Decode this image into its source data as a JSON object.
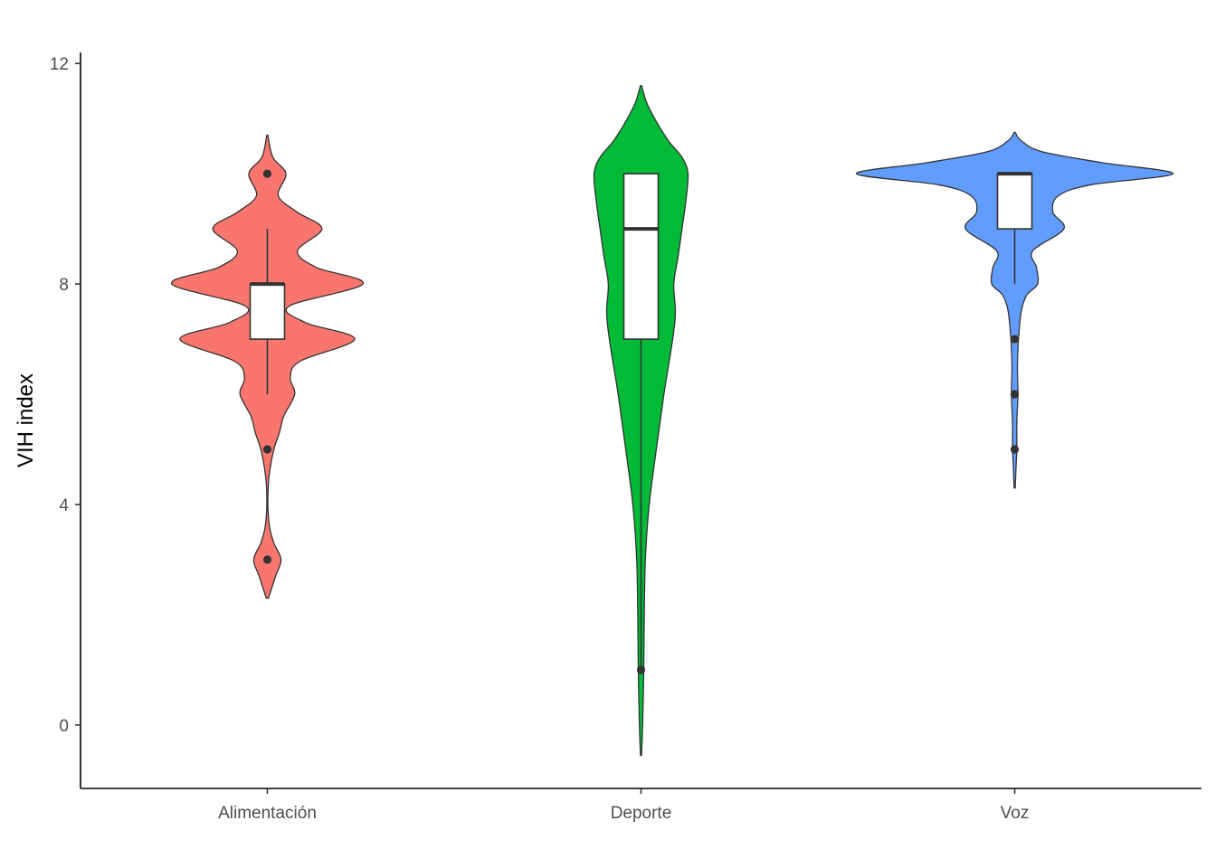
{
  "chart_data": {
    "type": "violin",
    "title": "",
    "xlabel": "",
    "ylabel": "VIH index",
    "ylim": [
      -1.15,
      12.2
    ],
    "yticks": [
      0,
      4,
      8,
      12
    ],
    "grid": false,
    "legend": "none",
    "categories": [
      "Alimentación",
      "Deporte",
      "Voz"
    ],
    "series": [
      {
        "category": "Alimentación",
        "color": "#F8766D",
        "box": {
          "min": 6,
          "q1": 7,
          "median": 8,
          "q3": 8,
          "max": 9
        },
        "outliers": [
          10,
          5,
          3
        ],
        "density": [
          [
            2.3,
            0.2
          ],
          [
            2.7,
            1.5
          ],
          [
            3.0,
            2.5
          ],
          [
            3.3,
            1.2
          ],
          [
            3.6,
            0.4
          ],
          [
            4.0,
            0.1
          ],
          [
            4.5,
            0.3
          ],
          [
            5.0,
            1.2
          ],
          [
            5.3,
            2.2
          ],
          [
            5.6,
            3.0
          ],
          [
            6.0,
            5.0
          ],
          [
            6.3,
            4.2
          ],
          [
            6.6,
            6.0
          ],
          [
            7.0,
            16.0
          ],
          [
            7.3,
            7.0
          ],
          [
            7.6,
            4.0
          ],
          [
            8.0,
            17.5
          ],
          [
            8.3,
            9.0
          ],
          [
            8.6,
            5.5
          ],
          [
            9.0,
            10.0
          ],
          [
            9.3,
            5.5
          ],
          [
            9.6,
            2.0
          ],
          [
            10.0,
            3.4
          ],
          [
            10.3,
            1.0
          ],
          [
            10.7,
            0.1
          ]
        ]
      },
      {
        "category": "Deporte",
        "color": "#00BA38",
        "box": {
          "min": 1,
          "q1": 7,
          "median": 9,
          "q3": 10,
          "max": 10
        },
        "outliers": [
          1
        ],
        "density": [
          [
            -0.55,
            0.1
          ],
          [
            0,
            0.3
          ],
          [
            1.0,
            0.5
          ],
          [
            2.0,
            0.6
          ],
          [
            3.0,
            0.8
          ],
          [
            4.0,
            1.5
          ],
          [
            5.0,
            2.8
          ],
          [
            6.0,
            4.2
          ],
          [
            7.0,
            5.8
          ],
          [
            7.5,
            6.3
          ],
          [
            8.0,
            6.0
          ],
          [
            8.5,
            6.8
          ],
          [
            9.0,
            7.5
          ],
          [
            9.5,
            8.2
          ],
          [
            10.0,
            8.6
          ],
          [
            10.3,
            7.5
          ],
          [
            10.6,
            5.0
          ],
          [
            11.0,
            2.5
          ],
          [
            11.3,
            1.0
          ],
          [
            11.6,
            0.1
          ]
        ]
      },
      {
        "category": "Voz",
        "color": "#619CFF",
        "box": {
          "min": 8,
          "q1": 9,
          "median": 10,
          "q3": 10,
          "max": 10
        },
        "outliers": [
          7,
          6,
          5
        ],
        "density": [
          [
            4.3,
            0.1
          ],
          [
            4.8,
            0.3
          ],
          [
            5.0,
            0.4
          ],
          [
            5.5,
            0.4
          ],
          [
            6.0,
            0.6
          ],
          [
            6.5,
            0.5
          ],
          [
            7.0,
            0.7
          ],
          [
            7.5,
            1.2
          ],
          [
            7.8,
            2.2
          ],
          [
            8.0,
            4.2
          ],
          [
            8.3,
            4.0
          ],
          [
            8.6,
            3.3
          ],
          [
            9.0,
            9.0
          ],
          [
            9.3,
            7.0
          ],
          [
            9.6,
            8.0
          ],
          [
            9.8,
            14.0
          ],
          [
            10.0,
            29.0
          ],
          [
            10.2,
            16.0
          ],
          [
            10.4,
            5.0
          ],
          [
            10.6,
            1.2
          ],
          [
            10.75,
            0.1
          ]
        ]
      }
    ]
  }
}
